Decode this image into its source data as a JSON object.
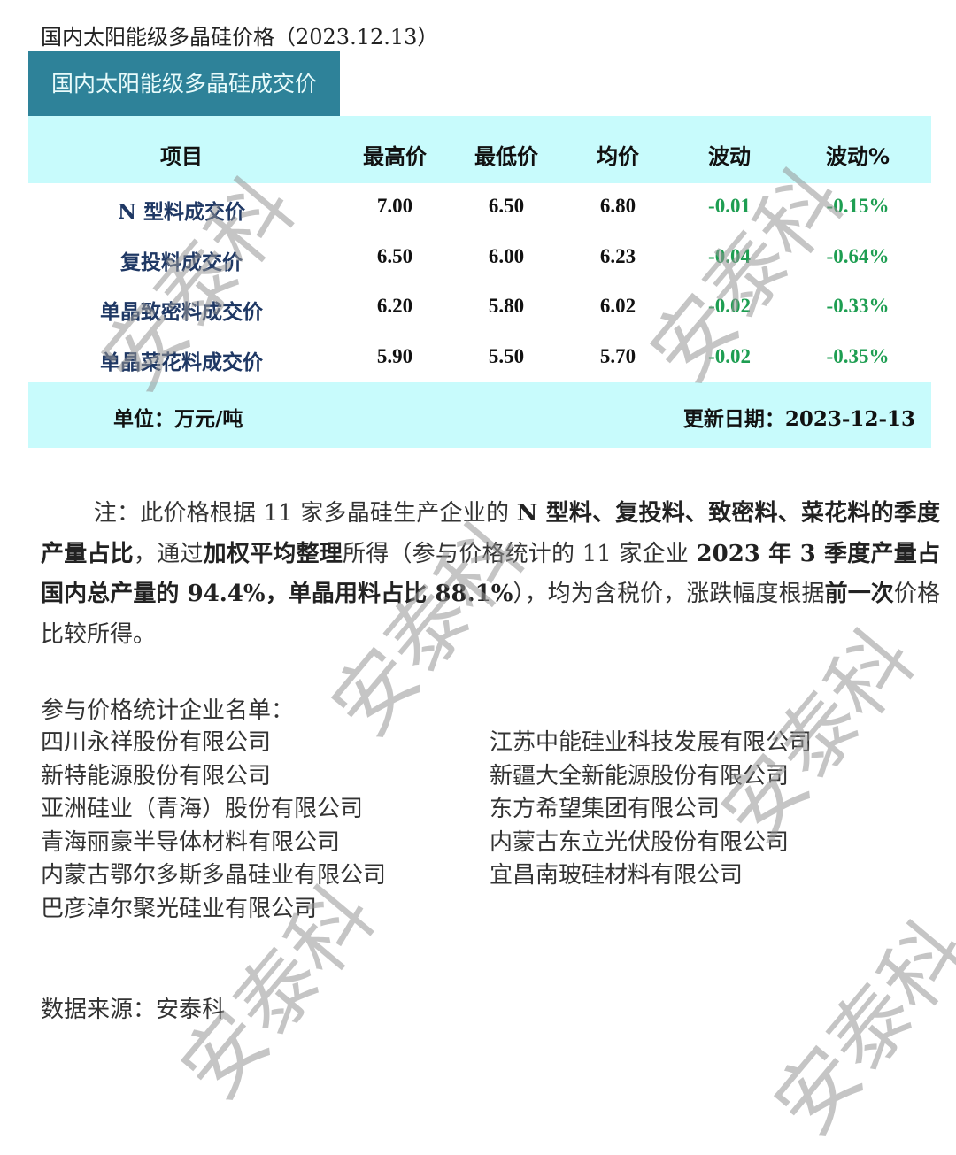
{
  "doc_title": "国内太阳能级多晶硅价格（2023.12.13）",
  "table": {
    "banner": "国内太阳能级多晶硅成交价",
    "headers": [
      "项目",
      "最高价",
      "最低价",
      "均价",
      "波动",
      "波动%"
    ],
    "rows": [
      [
        "N 型料成交价",
        "7.00",
        "6.50",
        "6.80",
        "-0.01",
        "-0.15%"
      ],
      [
        "复投料成交价",
        "6.50",
        "6.00",
        "6.23",
        "-0.04",
        "-0.64%"
      ],
      [
        "单晶致密料成交价",
        "6.20",
        "5.80",
        "6.02",
        "-0.02",
        "-0.33%"
      ],
      [
        "单晶菜花料成交价",
        "5.90",
        "5.50",
        "5.70",
        "-0.02",
        "-0.35%"
      ]
    ],
    "unit": "单位：万元/吨",
    "update": "更新日期：2023-12-13"
  },
  "note": [
    {
      "t": "注：此价格根据 11 家多晶硅生产企业的 ",
      "b": false
    },
    {
      "t": "N 型料、复投料、致密料、菜花料的季度产量占比",
      "b": true
    },
    {
      "t": "，通过",
      "b": false
    },
    {
      "t": "加权平均整理",
      "b": true
    },
    {
      "t": "所得（参与价格统计的 11 家企业 ",
      "b": false
    },
    {
      "t": "2023 年 3 季度产量占国内总产量的 94.4%，单晶用料占比 88.1%",
      "b": true
    },
    {
      "t": "），均为含税价，涨跌幅度根据",
      "b": false
    },
    {
      "t": "前一次",
      "b": true
    },
    {
      "t": "价格比较所得。",
      "b": false
    }
  ],
  "companies": {
    "title": "参与价格统计企业名单：",
    "left": [
      "四川永祥股份有限公司",
      "新特能源股份有限公司",
      "亚洲硅业（青海）股份有限公司",
      "青海丽豪半导体材料有限公司",
      "内蒙古鄂尔多斯多晶硅业有限公司",
      "巴彦淖尔聚光硅业有限公司"
    ],
    "right": [
      "江苏中能硅业科技发展有限公司",
      "新疆大全新能源股份有限公司",
      "东方希望集团有限公司",
      "内蒙古东立光伏股份有限公司",
      "宜昌南玻硅材料有限公司"
    ]
  },
  "source": "数据来源：安泰科",
  "watermark": "安泰科",
  "colors": {
    "banner": "#2e8299",
    "header_bg": "#c8fbfc",
    "change": "#1e9e52",
    "label": "#1f3864"
  }
}
